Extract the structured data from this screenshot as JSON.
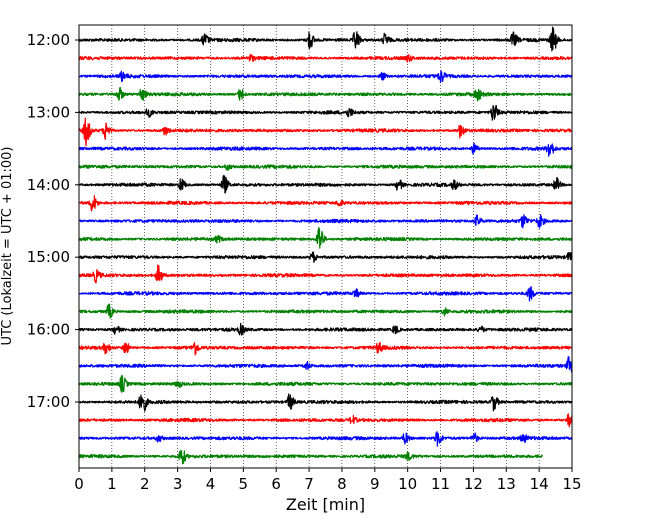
{
  "chart_data": {
    "type": "line",
    "title": "",
    "xlabel": "Zeit  [min]",
    "ylabel": "UTC (Lokalzeit = UTC + 01:00)",
    "xlim": [
      0,
      15
    ],
    "x_ticks": [
      "0",
      "1",
      "2",
      "3",
      "4",
      "5",
      "6",
      "7",
      "8",
      "9",
      "10",
      "11",
      "12",
      "13",
      "14",
      "15"
    ],
    "y_ticks": [
      "12:00",
      "13:00",
      "14:00",
      "15:00",
      "16:00",
      "17:00"
    ],
    "grid": "vertical dotted",
    "row_minutes": 15,
    "trace_colors": [
      "#000000",
      "#ff0000",
      "#0000ff",
      "#008000"
    ],
    "rows": [
      {
        "time": "12:00",
        "color": "#000000",
        "events": [
          {
            "t": 3.8,
            "a": 6
          },
          {
            "t": 7.0,
            "a": 9
          },
          {
            "t": 8.4,
            "a": 10
          },
          {
            "t": 9.3,
            "a": 6
          },
          {
            "t": 13.2,
            "a": 7
          },
          {
            "t": 14.4,
            "a": 13
          }
        ]
      },
      {
        "time": "12:15",
        "color": "#ff0000",
        "events": [
          {
            "t": 5.2,
            "a": 3
          },
          {
            "t": 10.0,
            "a": 3
          }
        ]
      },
      {
        "time": "12:30",
        "color": "#0000ff",
        "events": [
          {
            "t": 1.3,
            "a": 4
          },
          {
            "t": 9.2,
            "a": 4
          },
          {
            "t": 11.0,
            "a": 6
          }
        ]
      },
      {
        "time": "12:45",
        "color": "#008000",
        "events": [
          {
            "t": 1.2,
            "a": 7
          },
          {
            "t": 1.9,
            "a": 7
          },
          {
            "t": 4.9,
            "a": 6
          },
          {
            "t": 12.1,
            "a": 6
          }
        ]
      },
      {
        "time": "13:00",
        "color": "#000000",
        "events": [
          {
            "t": 2.1,
            "a": 4
          },
          {
            "t": 8.2,
            "a": 4
          },
          {
            "t": 12.6,
            "a": 10
          }
        ]
      },
      {
        "time": "13:15",
        "color": "#ff0000",
        "events": [
          {
            "t": 0.2,
            "a": 14
          },
          {
            "t": 0.8,
            "a": 9
          },
          {
            "t": 2.6,
            "a": 4
          },
          {
            "t": 11.6,
            "a": 7
          }
        ]
      },
      {
        "time": "13:30",
        "color": "#0000ff",
        "events": [
          {
            "t": 12.0,
            "a": 5
          },
          {
            "t": 14.3,
            "a": 9
          }
        ]
      },
      {
        "time": "13:45",
        "color": "#008000",
        "events": [
          {
            "t": 4.5,
            "a": 3
          }
        ]
      },
      {
        "time": "14:00",
        "color": "#000000",
        "events": [
          {
            "t": 3.1,
            "a": 6
          },
          {
            "t": 4.4,
            "a": 9
          },
          {
            "t": 9.7,
            "a": 6
          },
          {
            "t": 11.4,
            "a": 4
          },
          {
            "t": 14.5,
            "a": 7
          }
        ]
      },
      {
        "time": "14:15",
        "color": "#ff0000",
        "events": [
          {
            "t": 0.4,
            "a": 9
          },
          {
            "t": 7.9,
            "a": 3
          }
        ]
      },
      {
        "time": "14:30",
        "color": "#0000ff",
        "events": [
          {
            "t": 12.1,
            "a": 5
          },
          {
            "t": 13.5,
            "a": 6
          },
          {
            "t": 14.0,
            "a": 6
          }
        ]
      },
      {
        "time": "14:45",
        "color": "#008000",
        "events": [
          {
            "t": 4.2,
            "a": 3
          },
          {
            "t": 7.3,
            "a": 15
          }
        ]
      },
      {
        "time": "15:00",
        "color": "#000000",
        "events": [
          {
            "t": 7.1,
            "a": 5
          },
          {
            "t": 14.9,
            "a": 4
          }
        ]
      },
      {
        "time": "15:15",
        "color": "#ff0000",
        "events": [
          {
            "t": 0.5,
            "a": 6
          },
          {
            "t": 2.4,
            "a": 9
          }
        ]
      },
      {
        "time": "15:30",
        "color": "#0000ff",
        "events": [
          {
            "t": 8.4,
            "a": 4
          },
          {
            "t": 13.7,
            "a": 7
          }
        ]
      },
      {
        "time": "15:45",
        "color": "#008000",
        "events": [
          {
            "t": 0.9,
            "a": 7
          },
          {
            "t": 11.1,
            "a": 4
          }
        ]
      },
      {
        "time": "16:00",
        "color": "#000000",
        "events": [
          {
            "t": 1.1,
            "a": 4
          },
          {
            "t": 4.9,
            "a": 5
          },
          {
            "t": 9.6,
            "a": 4
          },
          {
            "t": 12.2,
            "a": 3
          }
        ]
      },
      {
        "time": "16:15",
        "color": "#ff0000",
        "events": [
          {
            "t": 0.8,
            "a": 5
          },
          {
            "t": 1.4,
            "a": 6
          },
          {
            "t": 3.5,
            "a": 7
          },
          {
            "t": 9.1,
            "a": 5
          }
        ]
      },
      {
        "time": "16:30",
        "color": "#0000ff",
        "events": [
          {
            "t": 6.9,
            "a": 4
          },
          {
            "t": 14.9,
            "a": 8
          }
        ]
      },
      {
        "time": "16:45",
        "color": "#008000",
        "events": [
          {
            "t": 1.3,
            "a": 8
          },
          {
            "t": 3.0,
            "a": 3
          }
        ]
      },
      {
        "time": "17:00",
        "color": "#000000",
        "events": [
          {
            "t": 1.9,
            "a": 14
          },
          {
            "t": 6.4,
            "a": 8
          },
          {
            "t": 12.6,
            "a": 8
          }
        ]
      },
      {
        "time": "17:15",
        "color": "#ff0000",
        "events": [
          {
            "t": 8.3,
            "a": 4
          },
          {
            "t": 14.9,
            "a": 6
          }
        ]
      },
      {
        "time": "17:30",
        "color": "#0000ff",
        "events": [
          {
            "t": 2.4,
            "a": 3
          },
          {
            "t": 9.9,
            "a": 5
          },
          {
            "t": 10.9,
            "a": 7
          },
          {
            "t": 12.0,
            "a": 5
          },
          {
            "t": 13.5,
            "a": 4
          }
        ]
      },
      {
        "time": "17:45",
        "color": "#008000",
        "events": [
          {
            "t": 3.1,
            "a": 9
          },
          {
            "t": 10.0,
            "a": 3
          }
        ],
        "end": 14.1
      }
    ]
  }
}
